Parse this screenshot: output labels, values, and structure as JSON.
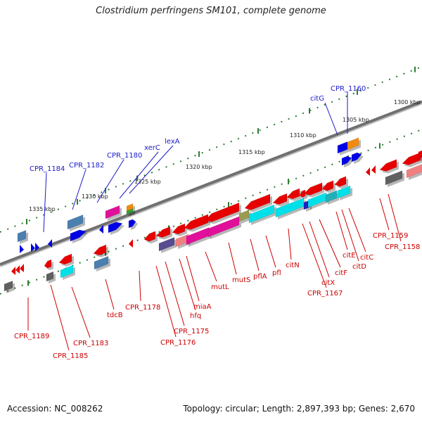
{
  "title": "Clostridium perfringens SM101, complete genome",
  "footer": {
    "accession": "Accession: NC_008262",
    "stats": "Topology: circular; Length: 2,897,393 bp; Genes: 2,670"
  },
  "scale_labels": [
    "1300 kbp",
    "1305 kbp",
    "1310 kbp",
    "1315 kbp",
    "1320 kbp",
    "1325 kbp",
    "1330 kbp",
    "1335 kbp"
  ],
  "forward_labels": [
    "CPR_1184",
    "CPR_1182",
    "CPR_1180",
    "xerC",
    "lexA",
    "citG",
    "CPR_1160"
  ],
  "reverse_labels": [
    "CPR_1189",
    "CPR_1185",
    "CPR_1183",
    "tdcB",
    "CPR_1178",
    "CPR_1176",
    "CPR_1175",
    "hfq",
    "miaA",
    "mutL",
    "mutS",
    "pflA",
    "pfl",
    "citN",
    "CPR_1167",
    "citX",
    "citF",
    "citE",
    "citD",
    "citC",
    "CPR_1159",
    "CPR_1158"
  ],
  "colors": {
    "backbone": "#707070",
    "ruler_dots": "#2e7d32",
    "forward_label": "#1a1acc",
    "reverse_label": "#cc0000",
    "gene_red": "#e60000",
    "gene_blue": "#0000e6",
    "gene_steel": "#4a7fb0",
    "gene_magenta": "#e0109a",
    "gene_cyan": "#00e0e8",
    "gene_teal": "#20b0b8",
    "gene_purple": "#5a4a90",
    "gene_salmon": "#f08080",
    "gene_olive": "#9a9a50",
    "gene_gray": "#606060",
    "gene_orange": "#f08a10"
  }
}
